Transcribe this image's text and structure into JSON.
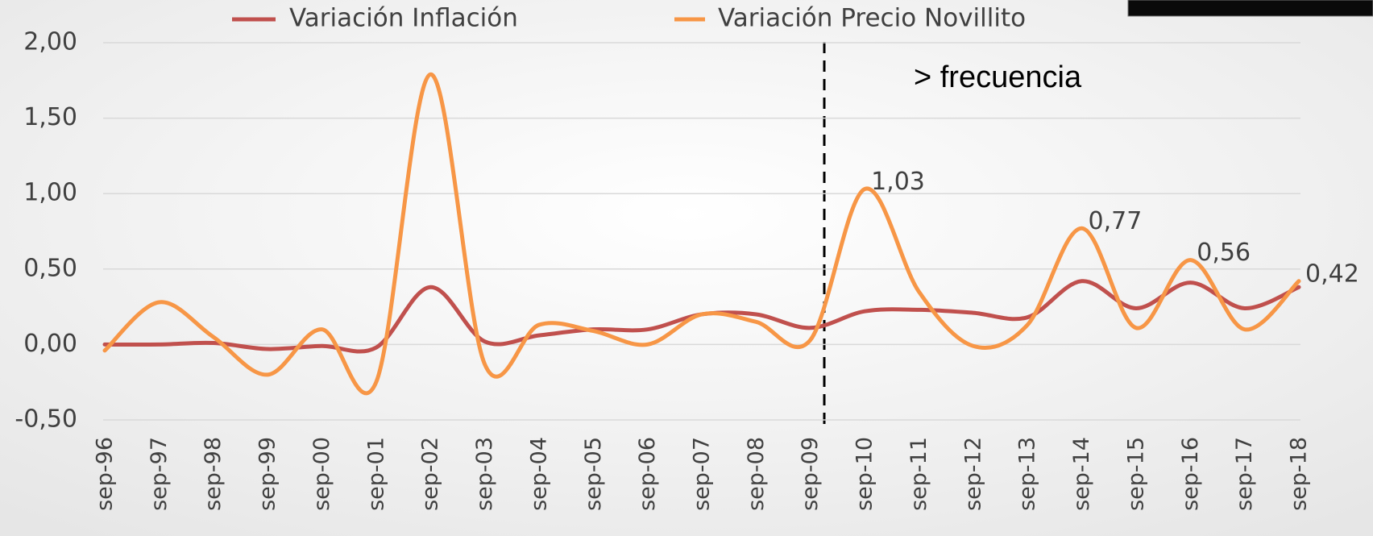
{
  "chart_data": {
    "type": "line",
    "categories": [
      "sep-96",
      "sep-97",
      "sep-98",
      "sep-99",
      "sep-00",
      "sep-01",
      "sep-02",
      "sep-03",
      "sep-04",
      "sep-05",
      "sep-06",
      "sep-07",
      "sep-08",
      "sep-09",
      "sep-10",
      "sep-11",
      "sep-12",
      "sep-13",
      "sep-14",
      "sep-15",
      "sep-16",
      "sep-17",
      "sep-18"
    ],
    "series": [
      {
        "name": "Variación Inflación",
        "color": "#c0504d",
        "values": [
          0.0,
          0.0,
          0.01,
          -0.03,
          -0.01,
          -0.02,
          0.38,
          0.02,
          0.06,
          0.1,
          0.1,
          0.2,
          0.2,
          0.11,
          0.22,
          0.23,
          0.21,
          0.18,
          0.42,
          0.24,
          0.41,
          0.24,
          0.38
        ]
      },
      {
        "name": "Variación Precio Novillito",
        "color": "#f79646",
        "values": [
          -0.04,
          0.28,
          0.05,
          -0.2,
          0.1,
          -0.25,
          1.79,
          -0.13,
          0.13,
          0.09,
          0.0,
          0.2,
          0.15,
          0.03,
          1.03,
          0.35,
          -0.01,
          0.13,
          0.77,
          0.11,
          0.56,
          0.1,
          0.42
        ],
        "value_labels": [
          null,
          null,
          null,
          null,
          null,
          null,
          null,
          null,
          null,
          null,
          null,
          null,
          null,
          null,
          "1,03",
          null,
          null,
          null,
          "0,77",
          null,
          "0,56",
          null,
          "0,42"
        ]
      }
    ],
    "ylim": [
      -0.5,
      2.0
    ],
    "yticks": [
      {
        "value": -0.5,
        "label": "-0,50"
      },
      {
        "value": 0,
        "label": "0,00"
      },
      {
        "value": 0.5,
        "label": "0,50"
      },
      {
        "value": 1.0,
        "label": "1,00"
      },
      {
        "value": 1.5,
        "label": "1,50"
      },
      {
        "value": 2.0,
        "label": "2,00"
      }
    ],
    "grid": true,
    "legend": "top",
    "annotations": [
      "> frecuencia"
    ]
  }
}
